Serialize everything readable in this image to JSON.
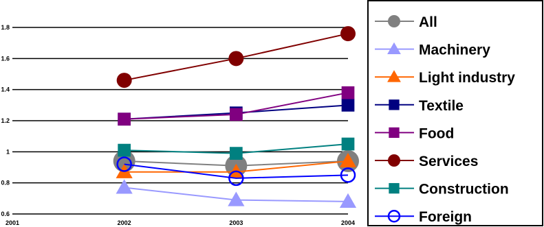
{
  "chart_data": {
    "type": "line",
    "x": [
      2002,
      2003,
      2004
    ],
    "x_ticks": [
      "2001",
      "2002",
      "2003",
      "2004"
    ],
    "y_ticks": [
      "0.6",
      "0.8",
      "1",
      "1.2",
      "1.4",
      "1.6",
      "1.8"
    ],
    "xlim": [
      2001,
      2004
    ],
    "ylim": [
      0.6,
      1.8
    ],
    "grid": "horizontal",
    "legend_position": "right",
    "series": [
      {
        "name": "All",
        "values": [
          0.94,
          0.91,
          0.94
        ],
        "color": "#808080",
        "marker": "circle-filled"
      },
      {
        "name": "Machinery",
        "values": [
          0.77,
          0.69,
          0.68
        ],
        "color": "#9999ff",
        "marker": "triangle-filled"
      },
      {
        "name": "Light industry",
        "values": [
          0.87,
          0.87,
          0.94
        ],
        "color": "#ff6600",
        "marker": "triangle-filled"
      },
      {
        "name": "Textile",
        "values": [
          1.21,
          1.25,
          1.3
        ],
        "color": "#000080",
        "marker": "square-filled"
      },
      {
        "name": "Food",
        "values": [
          1.21,
          1.24,
          1.38
        ],
        "color": "#800080",
        "marker": "square-filled"
      },
      {
        "name": "Services",
        "values": [
          1.46,
          1.6,
          1.76
        ],
        "color": "#800000",
        "marker": "circle-filled"
      },
      {
        "name": "Construction",
        "values": [
          1.01,
          0.99,
          1.05
        ],
        "color": "#008080",
        "marker": "square-filled"
      },
      {
        "name": "Foreign",
        "values": [
          0.92,
          0.83,
          0.85
        ],
        "color": "#0000ff",
        "marker": "circle-open"
      }
    ]
  }
}
